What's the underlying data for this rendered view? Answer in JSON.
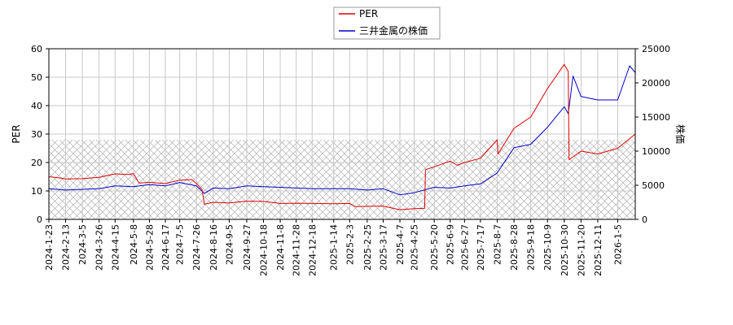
{
  "chart_data": {
    "type": "line",
    "title": "",
    "xlabel": "",
    "ylabel_left": "PER",
    "ylabel_right": "株価",
    "ylim_left": [
      0,
      60
    ],
    "ylim_right": [
      0,
      25000
    ],
    "yticks_left": [
      0,
      10,
      20,
      30,
      40,
      50,
      60
    ],
    "yticks_right": [
      0,
      5000,
      10000,
      15000,
      20000,
      25000
    ],
    "x_range": [
      "2024-01-23",
      "2026-01-27"
    ],
    "x_ticks": [
      "2024-1-23",
      "2024-2-13",
      "2024-3-5",
      "2024-3-26",
      "2024-4-15",
      "2024-5-8",
      "2024-5-28",
      "2024-6-17",
      "2024-7-5",
      "2024-7-26",
      "2024-8-16",
      "2024-9-5",
      "2024-9-27",
      "2024-10-18",
      "2024-11-8",
      "2024-11-28",
      "2024-12-18",
      "2025-1-14",
      "2025-2-3",
      "2025-2-25",
      "2025-3-17",
      "2025-4-7",
      "2025-4-25",
      "2025-5-20",
      "2025-6-9",
      "2025-6-27",
      "2025-7-17",
      "2025-8-7",
      "2025-8-28",
      "2025-9-18",
      "2025-10-9",
      "2025-10-30",
      "2025-11-20",
      "2025-12-11",
      "2026-1-5"
    ],
    "grid": true,
    "legend_position": "top-center",
    "hatch_band_left": [
      0,
      28
    ],
    "series": [
      {
        "name": "PER",
        "axis": "left",
        "color": "#dd0000",
        "points": [
          [
            "2024-01-23",
            15.0
          ],
          [
            "2024-02-05",
            14.6
          ],
          [
            "2024-02-13",
            14.2
          ],
          [
            "2024-03-05",
            14.3
          ],
          [
            "2024-03-26",
            14.8
          ],
          [
            "2024-04-15",
            16.0
          ],
          [
            "2024-05-02",
            15.8
          ],
          [
            "2024-05-08",
            16.1
          ],
          [
            "2024-05-15",
            12.8
          ],
          [
            "2024-05-28",
            13.0
          ],
          [
            "2024-06-17",
            12.6
          ],
          [
            "2024-07-05",
            13.8
          ],
          [
            "2024-07-20",
            14.0
          ],
          [
            "2024-07-26",
            12.6
          ],
          [
            "2024-08-02",
            10.5
          ],
          [
            "2024-08-05",
            5.3
          ],
          [
            "2024-08-16",
            6.0
          ],
          [
            "2024-09-05",
            5.8
          ],
          [
            "2024-09-27",
            6.4
          ],
          [
            "2024-10-18",
            6.3
          ],
          [
            "2024-11-08",
            5.6
          ],
          [
            "2024-11-28",
            5.7
          ],
          [
            "2024-12-18",
            5.6
          ],
          [
            "2025-01-14",
            5.5
          ],
          [
            "2025-02-03",
            5.6
          ],
          [
            "2025-02-10",
            4.5
          ],
          [
            "2025-02-25",
            4.6
          ],
          [
            "2025-03-17",
            4.7
          ],
          [
            "2025-04-07",
            3.4
          ],
          [
            "2025-04-25",
            3.8
          ],
          [
            "2025-05-08",
            3.9
          ],
          [
            "2025-05-09",
            17.5
          ],
          [
            "2025-05-20",
            18.5
          ],
          [
            "2025-06-09",
            20.5
          ],
          [
            "2025-06-18",
            19.0
          ],
          [
            "2025-06-27",
            20.0
          ],
          [
            "2025-07-17",
            21.5
          ],
          [
            "2025-08-07",
            28.0
          ],
          [
            "2025-08-08",
            23.0
          ],
          [
            "2025-08-28",
            32.0
          ],
          [
            "2025-09-18",
            36.0
          ],
          [
            "2025-10-09",
            46.0
          ],
          [
            "2025-10-30",
            54.5
          ],
          [
            "2025-11-04",
            52.0
          ],
          [
            "2025-11-05",
            21.0
          ],
          [
            "2025-11-20",
            24.0
          ],
          [
            "2025-12-11",
            23.0
          ],
          [
            "2026-01-05",
            25.0
          ],
          [
            "2026-01-27",
            30.0
          ]
        ]
      },
      {
        "name": "三井金属の株価",
        "axis": "right",
        "color": "#0000cc",
        "points": [
          [
            "2024-01-23",
            4500
          ],
          [
            "2024-02-13",
            4300
          ],
          [
            "2024-03-05",
            4400
          ],
          [
            "2024-03-26",
            4500
          ],
          [
            "2024-04-15",
            4900
          ],
          [
            "2024-05-08",
            4800
          ],
          [
            "2024-05-28",
            5100
          ],
          [
            "2024-06-17",
            4900
          ],
          [
            "2024-07-05",
            5400
          ],
          [
            "2024-07-26",
            4900
          ],
          [
            "2024-08-05",
            3800
          ],
          [
            "2024-08-16",
            4600
          ],
          [
            "2024-09-05",
            4500
          ],
          [
            "2024-09-27",
            4900
          ],
          [
            "2024-10-18",
            4800
          ],
          [
            "2024-11-08",
            4700
          ],
          [
            "2024-11-28",
            4600
          ],
          [
            "2024-12-18",
            4500
          ],
          [
            "2025-01-14",
            4500
          ],
          [
            "2025-02-03",
            4500
          ],
          [
            "2025-02-25",
            4300
          ],
          [
            "2025-03-17",
            4500
          ],
          [
            "2025-04-07",
            3600
          ],
          [
            "2025-04-25",
            3900
          ],
          [
            "2025-05-20",
            4700
          ],
          [
            "2025-06-09",
            4600
          ],
          [
            "2025-06-27",
            4900
          ],
          [
            "2025-07-17",
            5200
          ],
          [
            "2025-08-07",
            6800
          ],
          [
            "2025-08-28",
            10500
          ],
          [
            "2025-09-18",
            11000
          ],
          [
            "2025-10-09",
            13500
          ],
          [
            "2025-10-30",
            16500
          ],
          [
            "2025-11-04",
            15500
          ],
          [
            "2025-11-10",
            21000
          ],
          [
            "2025-11-20",
            18000
          ],
          [
            "2025-12-11",
            17500
          ],
          [
            "2026-01-05",
            17500
          ],
          [
            "2026-01-20",
            22500
          ],
          [
            "2026-01-27",
            21500
          ]
        ]
      }
    ]
  }
}
